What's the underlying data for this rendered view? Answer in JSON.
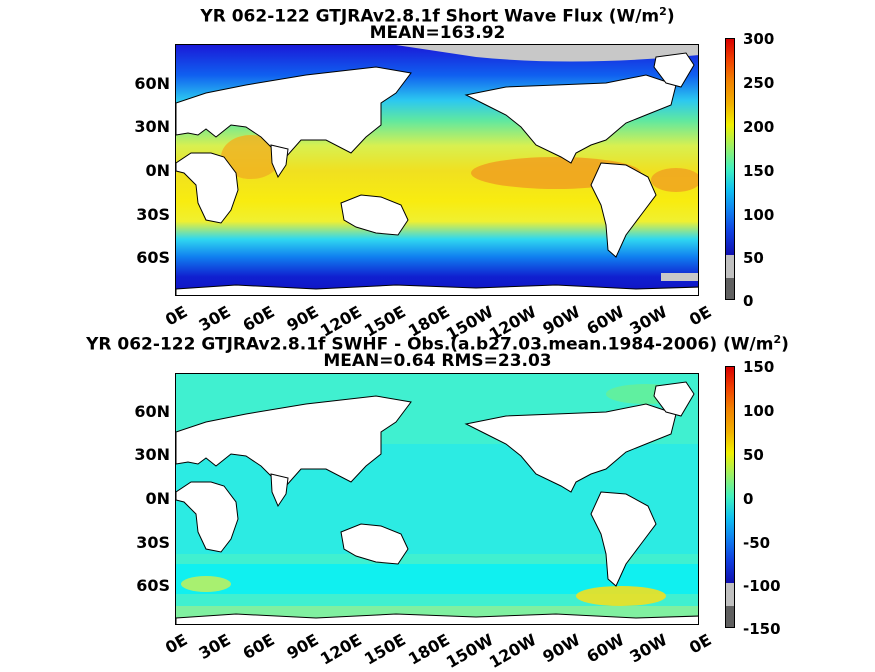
{
  "chart_data": [
    {
      "type": "heatmap",
      "title": "YR 062-122 GTJRAv2.8.1f  Short Wave Flux (W/m",
      "title_sup": "2",
      "title_end": ")",
      "subtitle": "MEAN=163.92",
      "y_ticks": [
        "60N",
        "30N",
        "0N",
        "30S",
        "60S"
      ],
      "x_ticks": [
        "0E",
        "30E",
        "60E",
        "90E",
        "120E",
        "150E",
        "180E",
        "150W",
        "120W",
        "90W",
        "60W",
        "30W",
        "0E"
      ],
      "colorbar_ticks": [
        "300",
        "250",
        "200",
        "150",
        "100",
        "50",
        "0"
      ],
      "colorbar_range": [
        0,
        300
      ]
    },
    {
      "type": "heatmap",
      "title": "YR 062-122 GTJRAv2.8.1f SWHF - Obs.(a.b27.03.mean.1984-2006) (W/m",
      "title_sup": "2",
      "title_end": ")",
      "subtitle": "MEAN=0.64 RMS=23.03",
      "y_ticks": [
        "60N",
        "30N",
        "0N",
        "30S",
        "60S"
      ],
      "x_ticks": [
        "0E",
        "30E",
        "60E",
        "90E",
        "120E",
        "150E",
        "180E",
        "150W",
        "120W",
        "90W",
        "60W",
        "30W",
        "0E"
      ],
      "colorbar_ticks": [
        "150",
        "100",
        "50",
        "0",
        "-50",
        "-100",
        "-150"
      ],
      "colorbar_range": [
        -150,
        150
      ]
    }
  ]
}
